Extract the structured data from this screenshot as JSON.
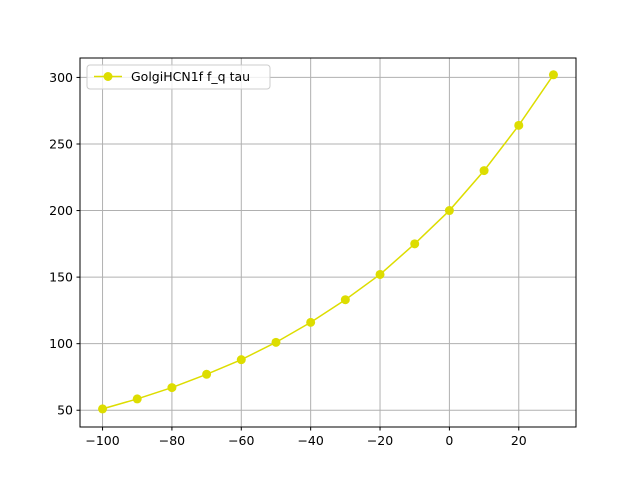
{
  "chart_data": {
    "type": "line",
    "title": "",
    "xlabel": "",
    "ylabel": "",
    "xlim": [
      -106.5,
      36.5
    ],
    "ylim": [
      37.4,
      314.6
    ],
    "xticks": [
      -100,
      -80,
      -60,
      -40,
      -20,
      0,
      20
    ],
    "yticks": [
      50,
      100,
      150,
      200,
      250,
      300
    ],
    "grid": true,
    "legend_position": "upper-left",
    "series": [
      {
        "name": "GolgiHCN1f f_q tau",
        "color": "#dddd00",
        "marker": "circle",
        "x": [
          -100,
          -90,
          -80,
          -70,
          -60,
          -50,
          -40,
          -30,
          -20,
          -10,
          0,
          10,
          20,
          30
        ],
        "y": [
          51,
          58.5,
          67,
          77,
          88,
          101,
          116,
          133,
          152,
          175,
          200,
          230,
          264,
          302
        ]
      }
    ]
  }
}
